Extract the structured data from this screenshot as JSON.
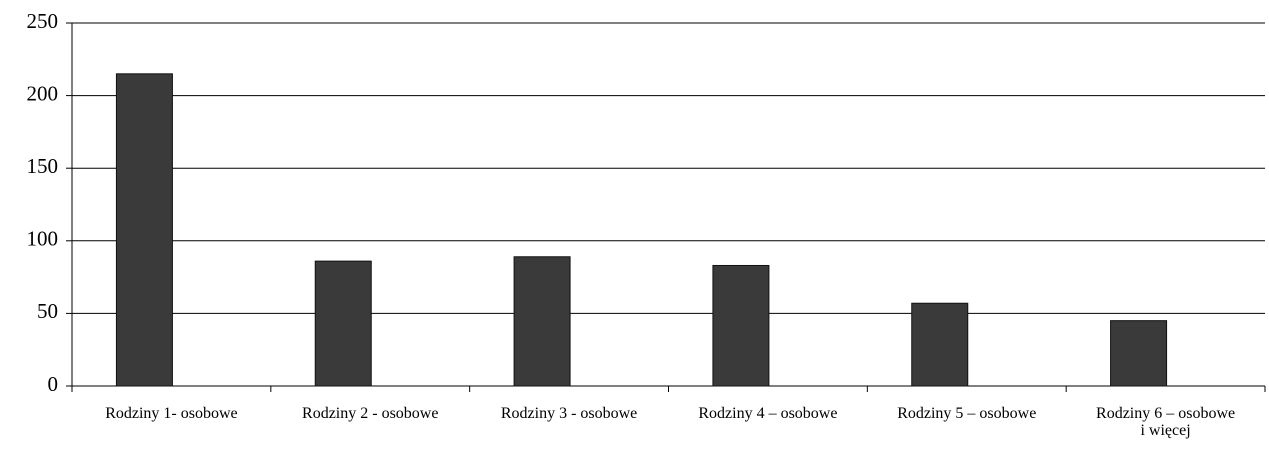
{
  "chart_data": {
    "type": "bar",
    "categories": [
      "Rodziny 1- osobowe",
      "Rodziny 2 - osobowe",
      "Rodziny 3 - osobowe",
      "Rodziny 4 – osobowe",
      "Rodziny 5 – osobowe",
      "Rodziny 6 – osobowe\ni więcej"
    ],
    "values": [
      215,
      86,
      89,
      83,
      57,
      45
    ],
    "color": "#3a3a3a",
    "ylim": [
      0,
      250
    ],
    "yticks": [
      0,
      50,
      100,
      150,
      200,
      250
    ],
    "grid": true
  }
}
